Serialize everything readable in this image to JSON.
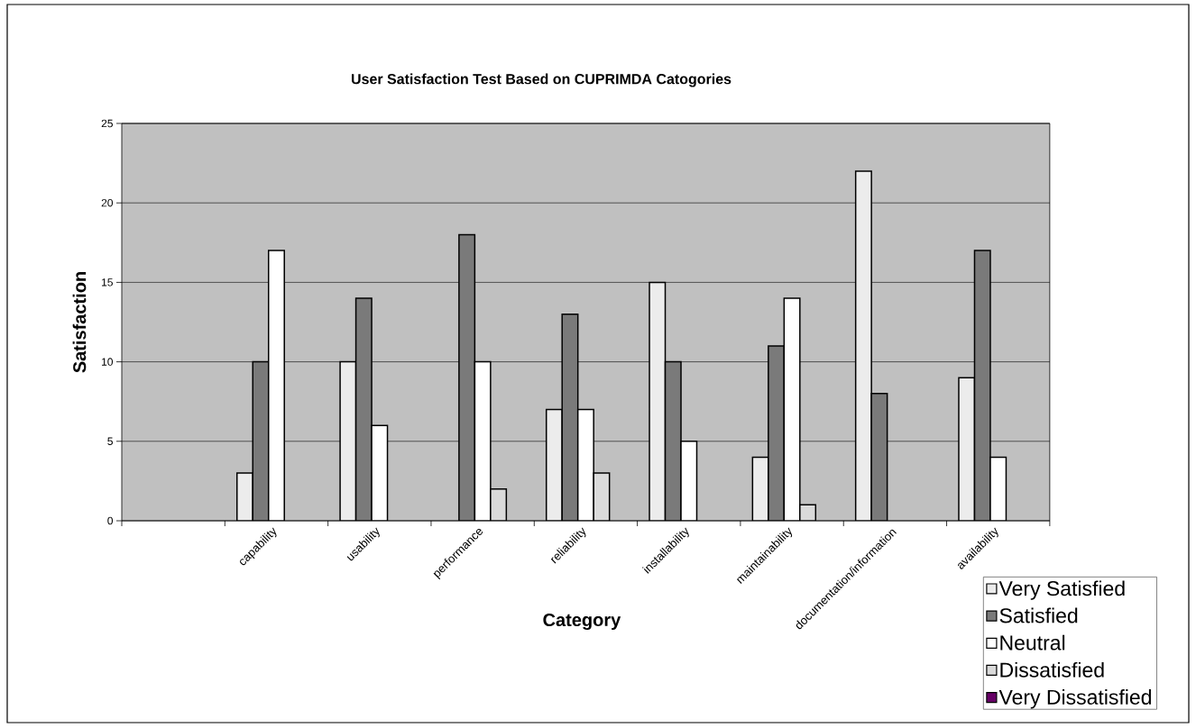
{
  "chart_data": {
    "type": "bar",
    "title": "User Satisfaction Test Based on CUPRIMDA Catogories",
    "xlabel": "Category",
    "ylabel": "Satisfaction",
    "categories": [
      null,
      "capability",
      "usability",
      "performance",
      "reliability",
      "installability",
      "maintainability",
      "documentation/information",
      "availability"
    ],
    "series": [
      {
        "name": "Very Satisfied",
        "color": "#ececec",
        "values": [
          null,
          3,
          10,
          null,
          7,
          15,
          4,
          22,
          9
        ]
      },
      {
        "name": "Satisfied",
        "color": "#7a7a7a",
        "values": [
          null,
          10,
          14,
          18,
          13,
          10,
          11,
          8,
          17
        ]
      },
      {
        "name": "Neutral",
        "color": "#ffffff",
        "values": [
          null,
          17,
          6,
          10,
          7,
          5,
          14,
          null,
          4
        ]
      },
      {
        "name": "Dissatisfied",
        "color": "#dadada",
        "values": [
          null,
          null,
          null,
          2,
          3,
          null,
          1,
          null,
          null
        ]
      },
      {
        "name": "Very Dissatisfied",
        "color": "#660066",
        "values": [
          null,
          null,
          null,
          null,
          null,
          null,
          null,
          null,
          null
        ]
      }
    ],
    "ylim": [
      0,
      25
    ],
    "yticks": [
      0,
      5,
      10,
      15,
      20,
      25
    ],
    "grid": "y",
    "legend": "bottom right"
  }
}
